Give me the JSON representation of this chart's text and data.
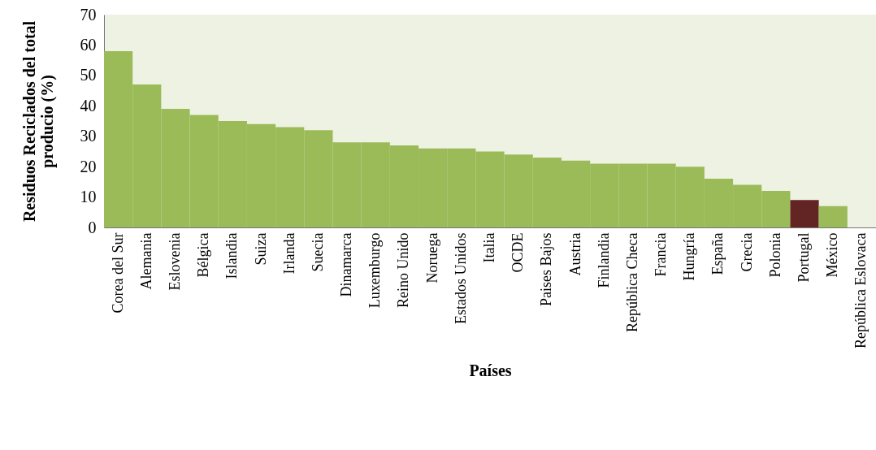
{
  "chart_data": {
    "type": "bar",
    "xlabel": "Países",
    "ylabel": "Residuos Reciclados del total producio (%)",
    "categories": [
      "Corea del Sur",
      "Alemania",
      "Eslovenia",
      "Bélgica",
      "Islandia",
      "Suiza",
      "Irlanda",
      "Suecia",
      "Dinamarca",
      "Luxemburgo",
      "Reino Unido",
      "Noruega",
      "Estados Unidos",
      "Italia",
      "OCDE",
      "Paises Bajos",
      "Austria",
      "Finlandia",
      "República Checa",
      "Francia",
      "Hungría",
      "España",
      "Grecia",
      "Polonia",
      "Portugal",
      "México",
      "República Eslovaca"
    ],
    "values": [
      58,
      47,
      39,
      37,
      35,
      34,
      33,
      32,
      28,
      28,
      27,
      26,
      26,
      25,
      24,
      23,
      22,
      21,
      21,
      21,
      20,
      16,
      14,
      12,
      9,
      7,
      null
    ],
    "colors": [
      "#9bbb59",
      "#9bbb59",
      "#9bbb59",
      "#9bbb59",
      "#9bbb59",
      "#9bbb59",
      "#9bbb59",
      "#9bbb59",
      "#9bbb59",
      "#9bbb59",
      "#9bbb59",
      "#9bbb59",
      "#9bbb59",
      "#9bbb59",
      "#9bbb59",
      "#9bbb59",
      "#9bbb59",
      "#9bbb59",
      "#9bbb59",
      "#9bbb59",
      "#9bbb59",
      "#9bbb59",
      "#9bbb59",
      "#9bbb59",
      "#632523",
      "#9bbb59",
      "#9bbb59"
    ],
    "ylim": [
      0,
      70
    ],
    "yticks": [
      0,
      10,
      20,
      30,
      40,
      50,
      60,
      70
    ]
  }
}
